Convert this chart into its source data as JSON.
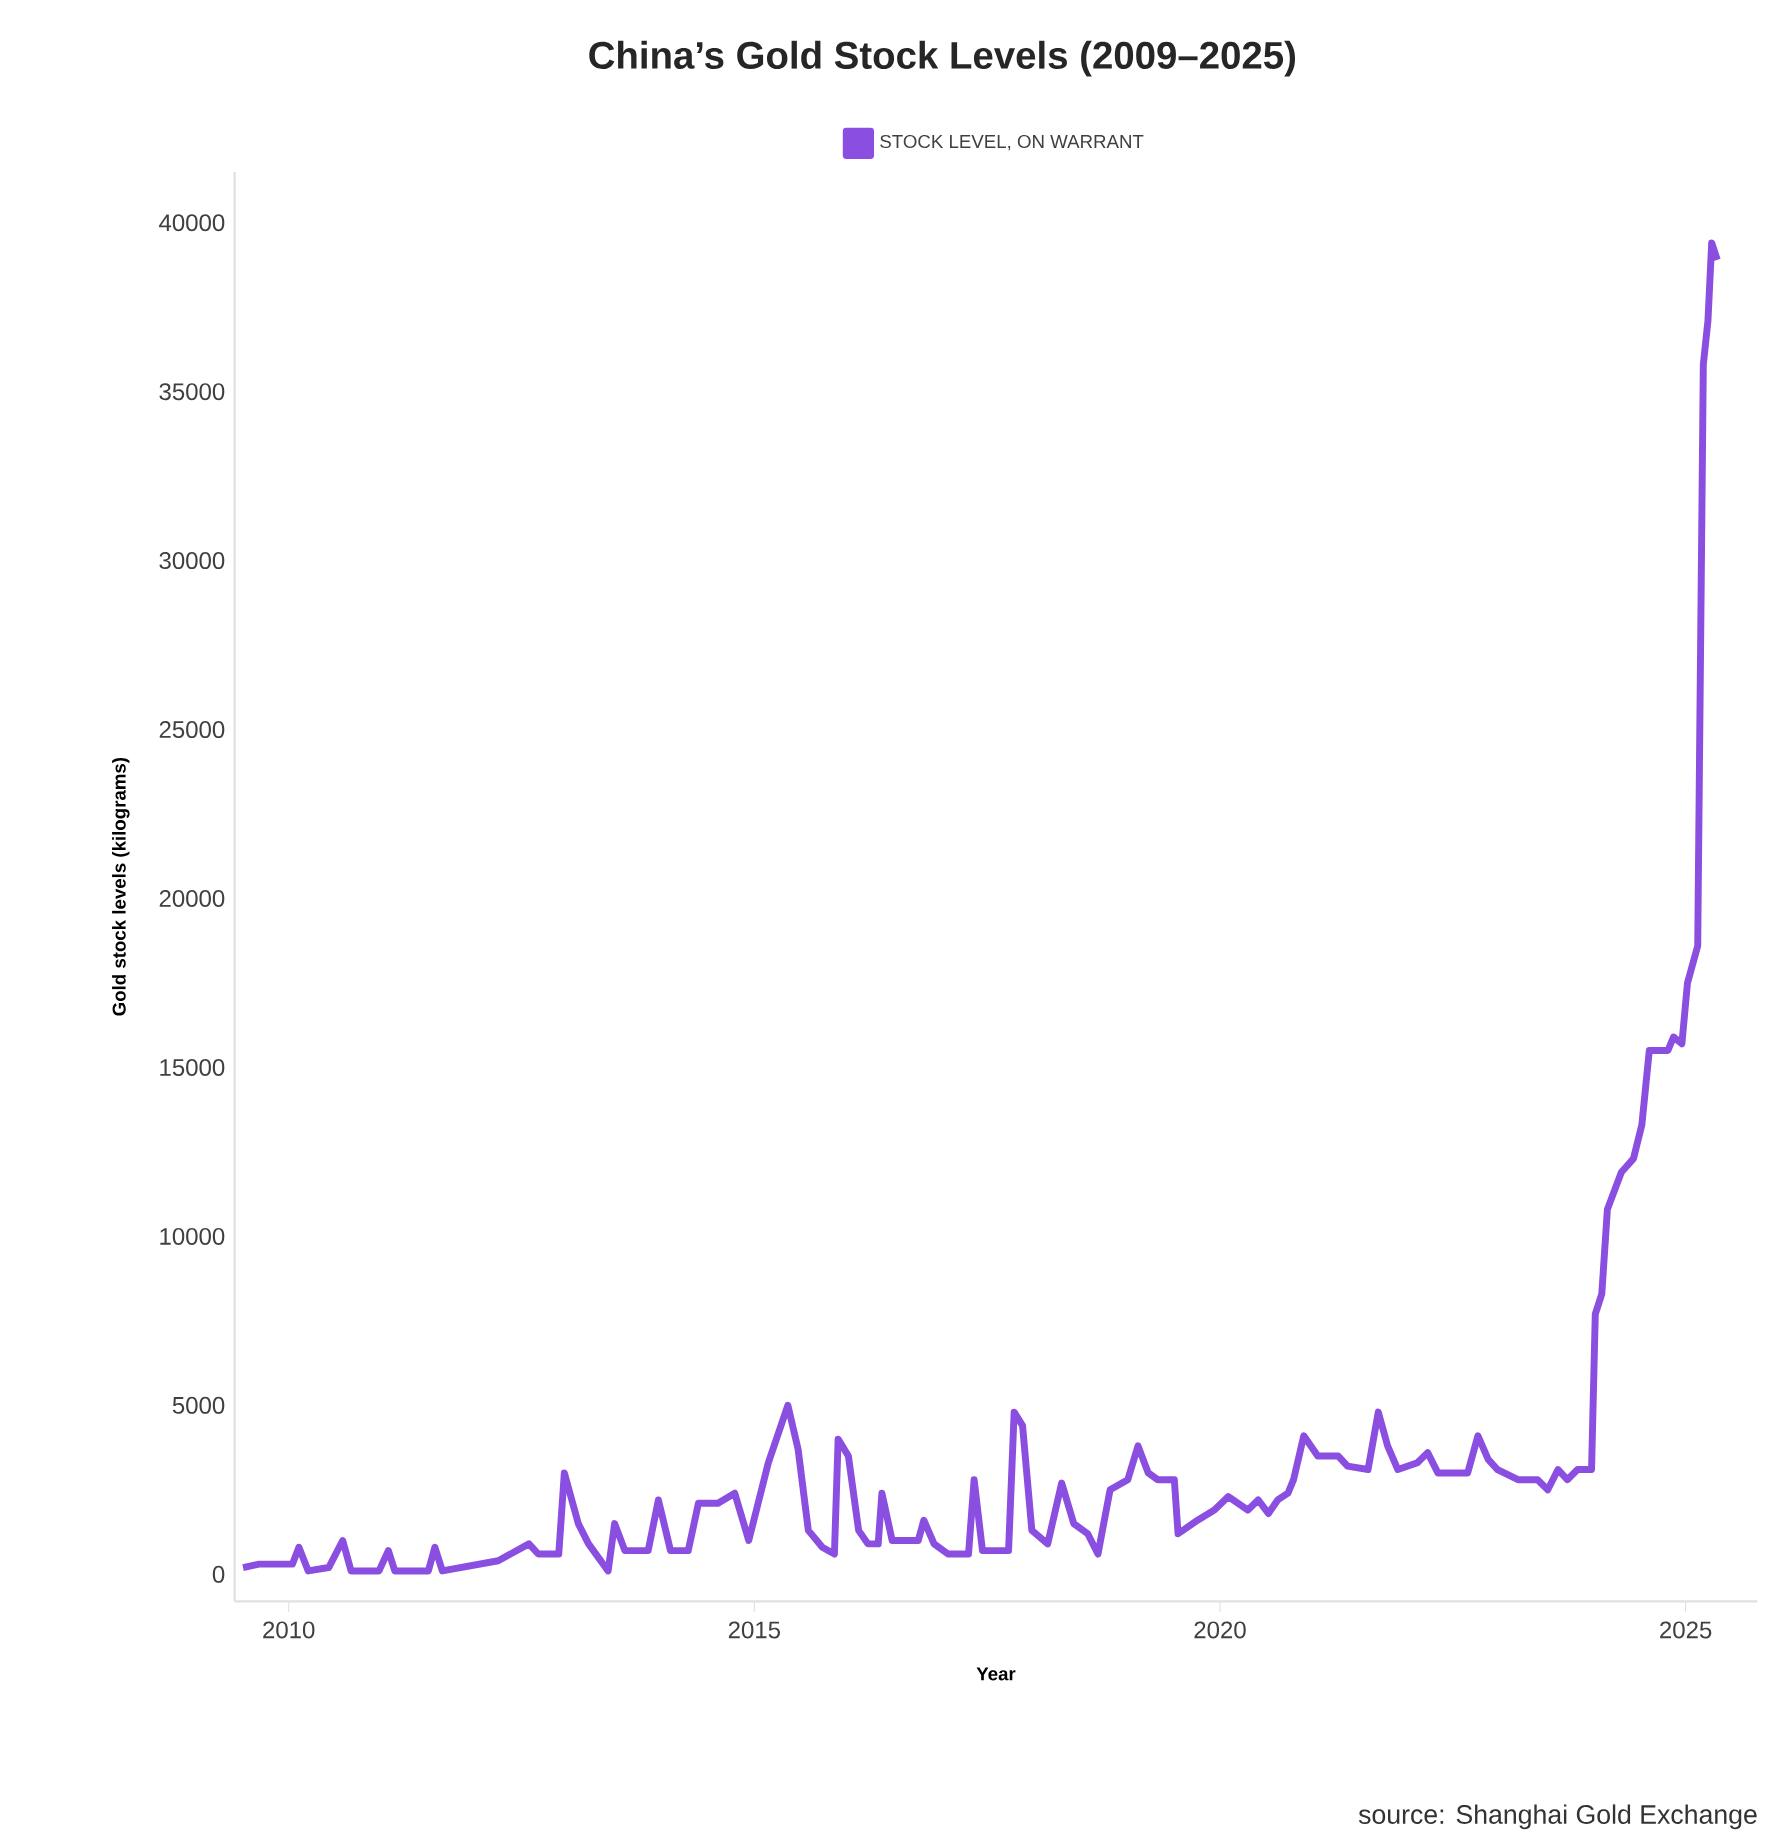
{
  "chart_data": {
    "type": "line",
    "title": "China’s Gold Stock Levels (2009–2025)",
    "xlabel": "Year",
    "ylabel": "Gold stock levels (kilograms)",
    "legend": "top",
    "line_style": "solid",
    "xlim": [
      2009.42,
      2025.77
    ],
    "ylim": [
      -800,
      41500
    ],
    "xticks": [
      2010,
      2015,
      2020,
      2025
    ],
    "yticks": [
      0,
      5000,
      10000,
      15000,
      20000,
      25000,
      30000,
      35000,
      40000
    ],
    "annotations": [
      "source: Shanghai Gold Exchange"
    ],
    "series": [
      {
        "name": "STOCK LEVEL, ON WARRANT",
        "color": "#8a4fe0",
        "x": [
          2009.51,
          2009.68,
          2010.04,
          2010.11,
          2010.21,
          2010.43,
          2010.58,
          2010.67,
          2010.97,
          2011.07,
          2011.14,
          2011.5,
          2011.57,
          2011.65,
          2012.25,
          2012.58,
          2012.68,
          2012.9,
          2012.96,
          2013.11,
          2013.22,
          2013.43,
          2013.5,
          2013.61,
          2013.86,
          2013.97,
          2014.1,
          2014.29,
          2014.4,
          2014.61,
          2014.79,
          2014.94,
          2015.15,
          2015.36,
          2015.47,
          2015.58,
          2015.73,
          2015.86,
          2015.9,
          2016.01,
          2016.12,
          2016.22,
          2016.33,
          2016.37,
          2016.48,
          2016.76,
          2016.82,
          2016.93,
          2017.08,
          2017.3,
          2017.36,
          2017.45,
          2017.73,
          2017.79,
          2017.88,
          2017.98,
          2018.15,
          2018.3,
          2018.43,
          2018.58,
          2018.69,
          2018.82,
          2019.01,
          2019.12,
          2019.23,
          2019.33,
          2019.51,
          2019.55,
          2019.76,
          2019.94,
          2020.09,
          2020.3,
          2020.41,
          2020.52,
          2020.62,
          2020.73,
          2020.79,
          2020.9,
          2021.05,
          2021.27,
          2021.37,
          2021.59,
          2021.7,
          2021.8,
          2021.91,
          2022.12,
          2022.23,
          2022.34,
          2022.66,
          2022.77,
          2022.88,
          2022.98,
          2023.2,
          2023.41,
          2023.52,
          2023.63,
          2023.73,
          2023.84,
          2023.99,
          2024.03,
          2024.1,
          2024.16,
          2024.31,
          2024.44,
          2024.53,
          2024.57,
          2024.61,
          2024.81,
          2024.87,
          2024.96,
          2025.02,
          2025.13,
          2025.19,
          2025.24,
          2025.28,
          2025.34
        ],
        "values": [
          200,
          300,
          300,
          800,
          100,
          200,
          1000,
          100,
          100,
          700,
          100,
          100,
          800,
          100,
          400,
          900,
          600,
          600,
          3000,
          1500,
          900,
          100,
          1500,
          700,
          700,
          2200,
          700,
          700,
          2100,
          2100,
          2400,
          1000,
          3300,
          5000,
          3700,
          1300,
          800,
          600,
          4000,
          3500,
          1300,
          900,
          900,
          2400,
          1000,
          1000,
          1600,
          900,
          600,
          600,
          2800,
          700,
          700,
          4800,
          4400,
          1300,
          900,
          2700,
          1500,
          1200,
          600,
          2500,
          2800,
          3800,
          3000,
          2800,
          2800,
          1200,
          1600,
          1900,
          2300,
          1900,
          2200,
          1800,
          2200,
          2400,
          2800,
          4100,
          3500,
          3500,
          3200,
          3100,
          4800,
          3800,
          3100,
          3300,
          3600,
          3000,
          3000,
          4100,
          3400,
          3100,
          2800,
          2800,
          2500,
          3100,
          2800,
          3100,
          3100,
          7700,
          8300,
          10800,
          11900,
          12300,
          13300,
          14400,
          15500,
          15500,
          15900,
          15700,
          17500,
          18600,
          35800,
          37100,
          39400,
          38900
        ]
      }
    ]
  }
}
